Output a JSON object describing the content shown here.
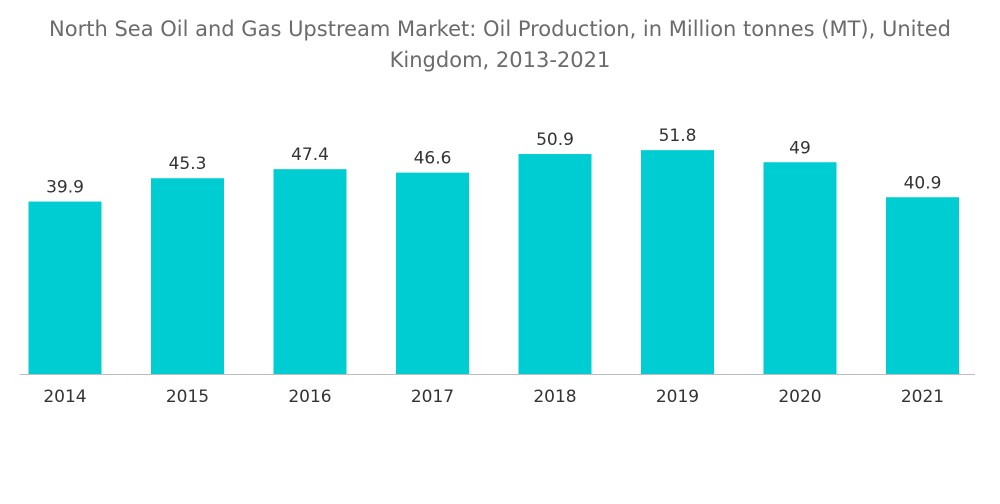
{
  "chart_data": {
    "type": "bar",
    "title": "North Sea Oil and Gas Upstream Market: Oil Production, in Million tonnes (MT), United Kingdom, 2013-2021",
    "xlabel": "",
    "ylabel": "",
    "categories": [
      "2014",
      "2015",
      "2016",
      "2017",
      "2018",
      "2019",
      "2020",
      "2021"
    ],
    "values": [
      39.9,
      45.3,
      47.4,
      46.6,
      50.9,
      51.8,
      49,
      40.9
    ],
    "value_labels": [
      "39.9",
      "45.3",
      "47.4",
      "46.6",
      "50.9",
      "51.8",
      "49",
      "40.9"
    ],
    "ylim": [
      0,
      56
    ],
    "grid": false,
    "legend": "none",
    "colors": {
      "bar": "#00cdd1",
      "title": "#6b6b6b",
      "label": "#333333",
      "axis": "#bdbdbd"
    }
  }
}
